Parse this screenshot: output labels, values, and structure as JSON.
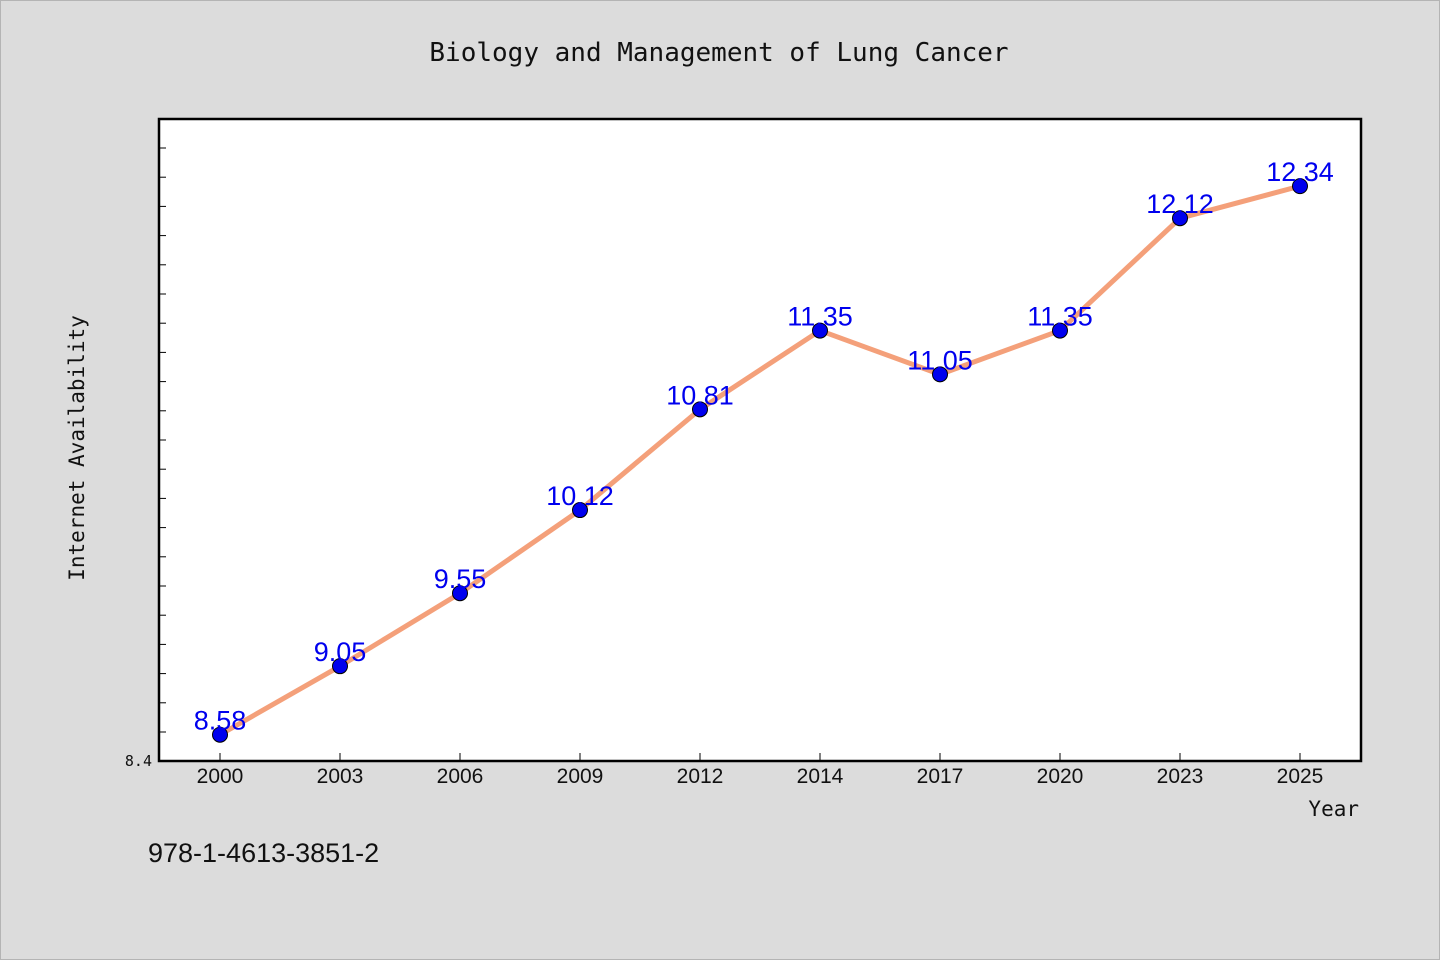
{
  "chart_data": {
    "type": "line",
    "title": "Biology and Management of Lung Cancer",
    "xlabel": "Year",
    "ylabel": "Internet Availability",
    "categories": [
      "2000",
      "2003",
      "2006",
      "2009",
      "2012",
      "2014",
      "2017",
      "2020",
      "2023",
      "2025"
    ],
    "series": [
      {
        "values": [
          8.58,
          9.05,
          9.55,
          10.12,
          10.81,
          11.35,
          11.05,
          11.35,
          12.12,
          12.34
        ],
        "labels": [
          "8.58",
          "9.05",
          "9.55",
          "10.12",
          "10.81",
          "11.35",
          "11.05",
          "11.35",
          "12.12",
          "12.34"
        ]
      }
    ],
    "ylim": [
      8.4,
      12.8
    ],
    "ytick_labels": [
      "8.4"
    ],
    "grid": false,
    "colors": {
      "line": "#f4a07a",
      "marker": "#0000ee",
      "data_label": "#0000ee",
      "plot_bg": "#ffffff",
      "page_bg": "#dcdcdc"
    }
  },
  "footer": {
    "isbn": "978-1-4613-3851-2"
  }
}
